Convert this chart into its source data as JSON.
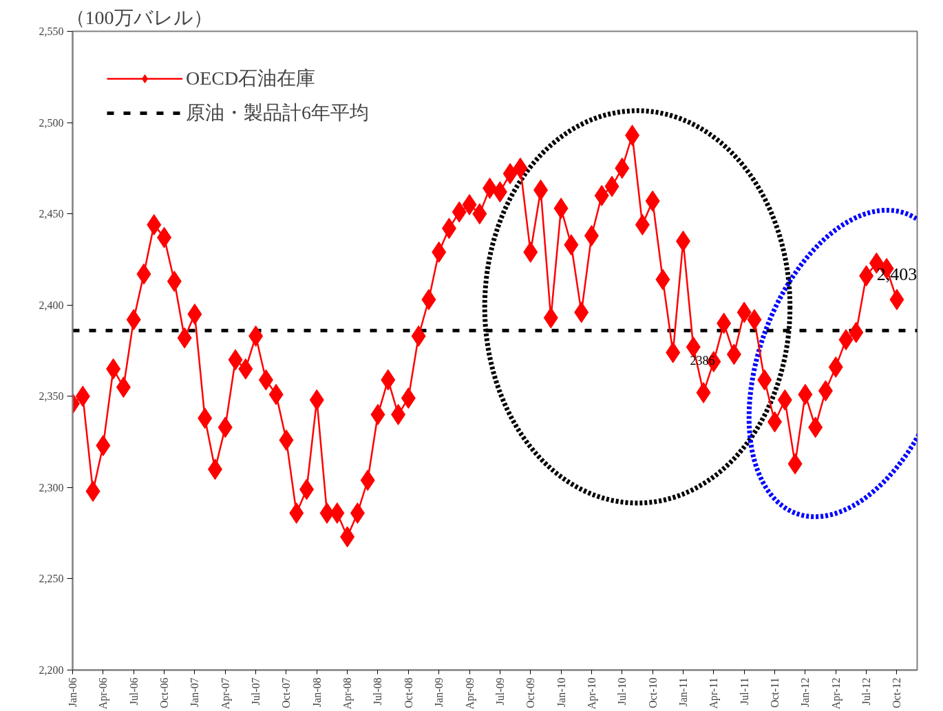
{
  "chart_data": {
    "type": "line",
    "ylabel": "（100万バレル）",
    "categories": [
      "Jan-06",
      null,
      null,
      "Apr-06",
      null,
      null,
      "Jul-06",
      null,
      null,
      "Oct-06",
      null,
      null,
      "Jan-07",
      null,
      null,
      "Apr-07",
      null,
      null,
      "Jul-07",
      null,
      null,
      "Oct-07",
      null,
      null,
      "Jan-08",
      null,
      null,
      "Apr-08",
      null,
      null,
      "Jul-08",
      null,
      null,
      "Oct-08",
      null,
      null,
      "Jan-09",
      null,
      null,
      "Apr-09",
      null,
      null,
      "Jul-09",
      null,
      null,
      "Oct-09",
      null,
      null,
      "Jan-10",
      null,
      null,
      "Apr-10",
      null,
      null,
      "Jul-10",
      null,
      null,
      "Oct-10",
      null,
      null,
      "Jan-11",
      null,
      null,
      "Apr-11",
      null,
      null,
      "Jul-11",
      null,
      null,
      "Oct-11",
      null,
      null,
      "Jan-12",
      null,
      null,
      "Apr-12",
      null,
      null,
      "Jul-12",
      null,
      null,
      "Oct-12"
    ],
    "series": [
      {
        "name": "OECD石油在庫",
        "color": "#ff0000",
        "values": [
          2346,
          2350,
          2298,
          2323,
          2365,
          2355,
          2392,
          2417,
          2444,
          2437,
          2413,
          2382,
          2395,
          2338,
          2310,
          2333,
          2370,
          2365,
          2383,
          2359,
          2351,
          2326,
          2286,
          2299,
          2348,
          2286,
          2286,
          2273,
          2286,
          2304,
          2340,
          2359,
          2340,
          2349,
          2383,
          2403,
          2429,
          2442,
          2451,
          2455,
          2450,
          2464,
          2462,
          2472,
          2475,
          2429,
          2463,
          2393,
          2453,
          2433,
          2396,
          2438,
          2460,
          2465,
          2475,
          2493,
          2444,
          2457,
          2414,
          2374,
          2435,
          2377,
          2352,
          2369,
          2390,
          2373,
          2396,
          2392,
          2359,
          2336,
          2348,
          2313,
          2351,
          2333,
          2353,
          2366,
          2381,
          2385,
          2416,
          2423,
          2420,
          2403
        ]
      }
    ],
    "ylim": [
      2200,
      2550
    ],
    "yticks": [
      {
        "value": 2200,
        "label": "2,200"
      },
      {
        "value": 2250,
        "label": "2,250"
      },
      {
        "value": 2300,
        "label": "2,300"
      },
      {
        "value": 2350,
        "label": "2,350"
      },
      {
        "value": 2400,
        "label": "2,400"
      },
      {
        "value": 2450,
        "label": "2,450"
      },
      {
        "value": 2500,
        "label": "2,500"
      },
      {
        "value": 2550,
        "label": "2,550"
      }
    ],
    "ref_lines": [
      {
        "axis": "y",
        "value": 2386,
        "label": "原油・製品計6年平均",
        "color": "#000000",
        "line_style": "dashed"
      }
    ],
    "annotations": [
      {
        "text": "2386",
        "x": "Jan-11",
        "y": 2386
      },
      {
        "text": "2,403",
        "x": "Oct-12",
        "y": 2403
      }
    ],
    "marker": "diamond",
    "line_style": "solid",
    "legend": "top left",
    "grid": false
  }
}
